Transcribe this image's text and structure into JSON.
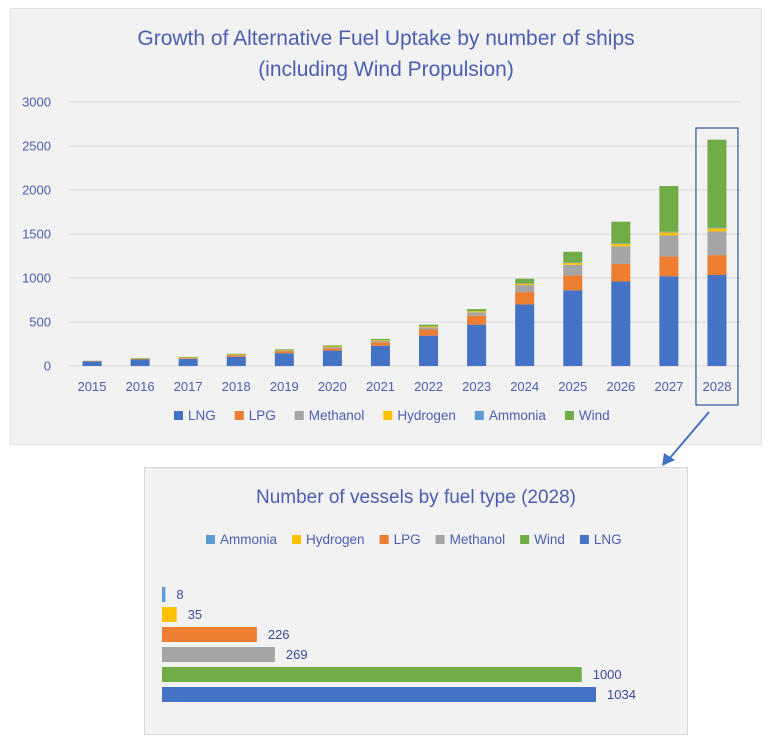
{
  "colors": {
    "LNG": "#4472c4",
    "LPG": "#ed7d31",
    "Methanol": "#a5a5a5",
    "Hydrogen": "#ffc000",
    "Ammonia": "#5b9bd5",
    "Wind": "#70ad47",
    "title": "#4a5eb2",
    "grid": "#d9d9d9",
    "highlight": "#2f5597",
    "arrow": "#4472c4"
  },
  "chart_data": [
    {
      "type": "bar",
      "stacked": true,
      "title": "Growth of Alternative Fuel Uptake by number of ships",
      "subtitle": "(including Wind Propulsion)",
      "categories": [
        "2015",
        "2016",
        "2017",
        "2018",
        "2019",
        "2020",
        "2021",
        "2022",
        "2023",
        "2024",
        "2025",
        "2026",
        "2027",
        "2028"
      ],
      "ylim": [
        0,
        3000
      ],
      "yticks": [
        "0",
        "500",
        "1000",
        "1500",
        "2000",
        "2500",
        "3000"
      ],
      "grid": true,
      "legend_position": "bottom",
      "highlighted_category": "2028",
      "series": [
        {
          "name": "LNG",
          "values": [
            55,
            75,
            80,
            105,
            145,
            175,
            230,
            345,
            470,
            700,
            860,
            960,
            1020,
            1034
          ]
        },
        {
          "name": "LPG",
          "values": [
            2,
            5,
            8,
            15,
            20,
            25,
            40,
            70,
            100,
            140,
            170,
            200,
            225,
            226
          ]
        },
        {
          "name": "Methanol",
          "values": [
            3,
            5,
            8,
            10,
            12,
            15,
            15,
            25,
            40,
            80,
            120,
            200,
            240,
            269
          ]
        },
        {
          "name": "Hydrogen",
          "values": [
            0,
            1,
            2,
            3,
            5,
            7,
            8,
            10,
            12,
            20,
            25,
            30,
            33,
            35
          ]
        },
        {
          "name": "Ammonia",
          "values": [
            0,
            0,
            0,
            0,
            0,
            0,
            0,
            0,
            0,
            2,
            3,
            5,
            7,
            8
          ]
        },
        {
          "name": "Wind",
          "values": [
            0,
            2,
            5,
            7,
            8,
            12,
            15,
            20,
            25,
            50,
            120,
            245,
            520,
            1000
          ]
        }
      ]
    },
    {
      "type": "bar",
      "orientation": "horizontal",
      "title": "Number of vessels by fuel type (2028)",
      "legend_position": "top",
      "categories": [
        "Ammonia",
        "Hydrogen",
        "LPG",
        "Methanol",
        "Wind",
        "LNG"
      ],
      "values": [
        8,
        35,
        226,
        269,
        1000,
        1034
      ]
    }
  ]
}
